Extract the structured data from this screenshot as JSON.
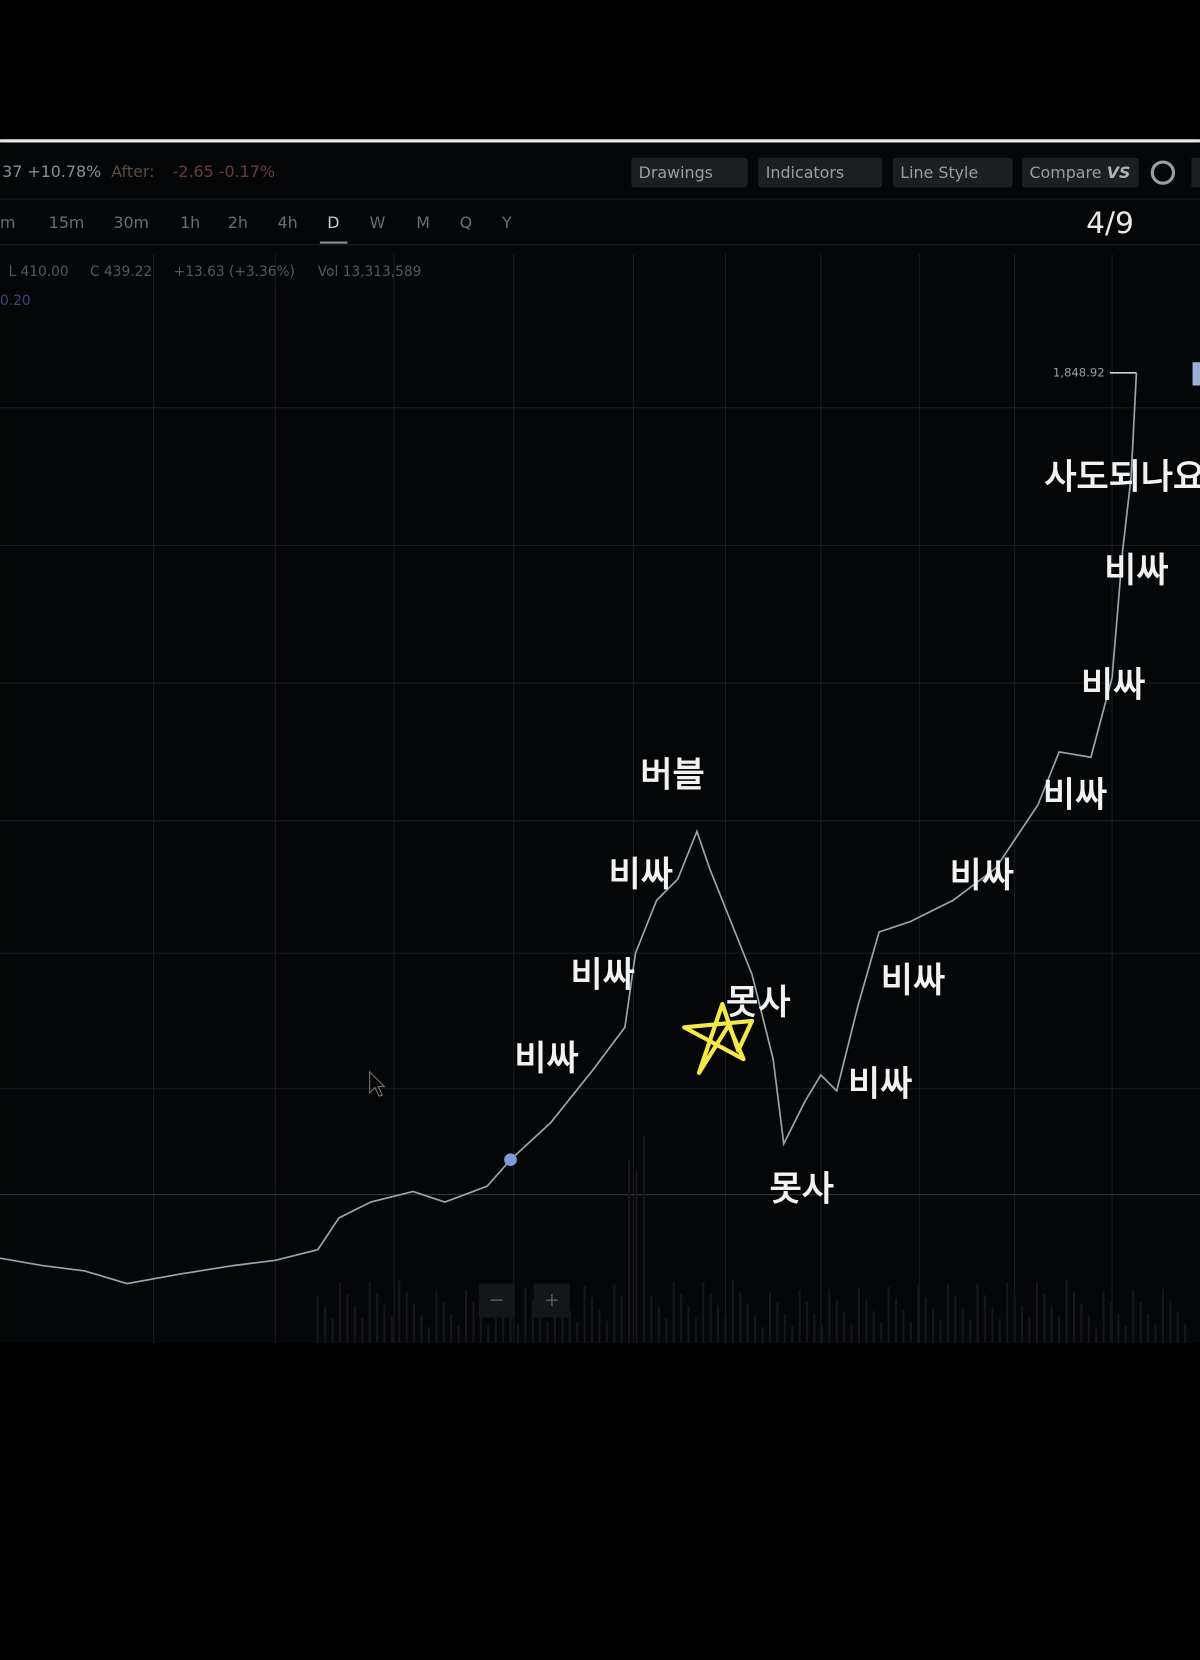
{
  "header": {
    "quote": "37 +10.78%",
    "after_label": "After:",
    "after_change": "-2.65 -0.17%"
  },
  "toolbar": {
    "buttons": [
      "Drawings",
      "Indicators",
      "Line Style",
      "Compare"
    ],
    "compare_badge": "VS"
  },
  "timeframes": [
    "m",
    "15m",
    "30m",
    "1h",
    "2h",
    "4h",
    "D",
    "W",
    "M",
    "Q",
    "Y"
  ],
  "page_counter": "4/9",
  "ohlc": [
    "L 410.00",
    "C 439.22",
    "+13.63 (+3.36%)",
    "Vol 13,313,589"
  ],
  "indicator_value": "0.20",
  "price_label": "1,848.92",
  "annotations": [
    "사도되나요",
    "비싸",
    "비싸",
    "비싸",
    "버블",
    "비싸",
    "비싸",
    "비싸",
    "비싸",
    "못사",
    "비싸",
    "비싸",
    "못사"
  ],
  "zoom": [
    "−",
    "+"
  ]
}
